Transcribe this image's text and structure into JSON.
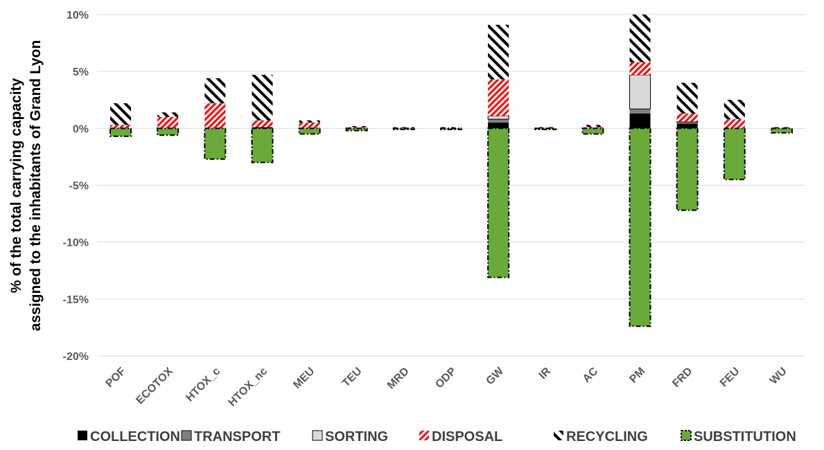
{
  "chart_data": {
    "type": "bar",
    "stacked": true,
    "ylabel_lines": [
      "% of the total carrying capacity",
      "assigned to the inhabitants of Grand Lyon"
    ],
    "ylim": [
      -20,
      10
    ],
    "yticks": [
      10,
      5,
      0,
      -5,
      -10,
      -15,
      -20
    ],
    "ytick_labels": [
      "10%",
      "5%",
      "0%",
      "-5%",
      "-10%",
      "-15%",
      "-20%"
    ],
    "grid": true,
    "legend_position": "bottom",
    "categories": [
      "POF",
      "ECOTOX",
      "HTOX_c",
      "HTOX_nc",
      "MEU",
      "TEU",
      "MRD",
      "ODP",
      "GW",
      "IR",
      "AC",
      "PM",
      "FRD",
      "FEU",
      "WU"
    ],
    "series": [
      {
        "name": "COLLECTION",
        "color": "#000000",
        "pattern": "solid",
        "values": [
          0,
          0,
          0,
          0.1,
          0,
          0,
          0,
          0,
          0.5,
          0,
          0,
          1.3,
          0.4,
          0,
          0
        ]
      },
      {
        "name": "TRANSPORT",
        "color": "#808080",
        "pattern": "solid",
        "values": [
          0,
          0,
          0,
          0,
          0,
          0,
          0,
          0,
          0.3,
          0,
          0,
          0.4,
          0.1,
          0,
          0
        ]
      },
      {
        "name": "SORTING",
        "color": "#d9d9d9",
        "pattern": "solid",
        "values": [
          0,
          0,
          0,
          0,
          0,
          0,
          0,
          0,
          0.3,
          0,
          0,
          3.0,
          0.1,
          0,
          0
        ]
      },
      {
        "name": "DISPOSAL",
        "color": "#ff0000",
        "pattern": "red-hatch",
        "values": [
          0.3,
          1.0,
          2.2,
          0.6,
          0.5,
          0.1,
          0,
          0,
          3.2,
          0,
          0.1,
          1.1,
          0.7,
          0.8,
          0
        ]
      },
      {
        "name": "RECYCLING",
        "color": "#000000",
        "pattern": "black-diagonal",
        "values": [
          1.9,
          0.4,
          2.2,
          4.0,
          0.2,
          0.1,
          0.1,
          0.1,
          4.8,
          0.1,
          0.2,
          4.2,
          2.7,
          1.7,
          0.1
        ]
      },
      {
        "name": "SUBSTITUTION",
        "color": "#6aaa3a",
        "pattern": "green-dashed",
        "values": [
          -0.7,
          -0.6,
          -2.7,
          -3.0,
          -0.5,
          -0.2,
          -0.1,
          -0.1,
          -13.1,
          -0.1,
          -0.5,
          -17.4,
          -7.2,
          -4.5,
          -0.4
        ]
      }
    ]
  }
}
